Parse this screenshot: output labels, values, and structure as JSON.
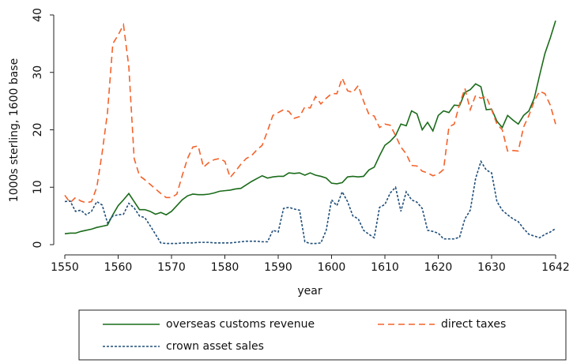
{
  "chart_data": {
    "type": "line",
    "x_label": "year",
    "y_label": "1000s sterling, 1600 base",
    "x": [
      1550,
      1551,
      1552,
      1553,
      1554,
      1555,
      1556,
      1557,
      1558,
      1559,
      1560,
      1561,
      1562,
      1563,
      1564,
      1565,
      1566,
      1567,
      1568,
      1569,
      1570,
      1571,
      1572,
      1573,
      1574,
      1575,
      1576,
      1577,
      1578,
      1579,
      1580,
      1581,
      1582,
      1583,
      1584,
      1585,
      1586,
      1587,
      1588,
      1589,
      1590,
      1591,
      1592,
      1593,
      1594,
      1595,
      1596,
      1597,
      1598,
      1599,
      1600,
      1601,
      1602,
      1603,
      1604,
      1605,
      1606,
      1607,
      1608,
      1609,
      1610,
      1611,
      1612,
      1613,
      1614,
      1615,
      1616,
      1617,
      1618,
      1619,
      1620,
      1621,
      1622,
      1623,
      1624,
      1625,
      1626,
      1627,
      1628,
      1629,
      1630,
      1631,
      1632,
      1633,
      1634,
      1635,
      1636,
      1637,
      1638,
      1639,
      1640,
      1641,
      1642
    ],
    "series": [
      {
        "name": "overseas customs revenue",
        "color": "#1a6b1a",
        "dash": "solid",
        "values": [
          1.9,
          2.0,
          2.0,
          2.3,
          2.5,
          2.7,
          3.0,
          3.2,
          3.4,
          5.2,
          6.8,
          7.8,
          8.9,
          7.5,
          6.1,
          6.1,
          5.8,
          5.3,
          5.6,
          5.2,
          5.8,
          6.8,
          7.8,
          8.5,
          8.8,
          8.7,
          8.7,
          8.8,
          9.0,
          9.3,
          9.4,
          9.5,
          9.7,
          9.8,
          10.4,
          11.0,
          11.5,
          12.0,
          11.6,
          11.8,
          11.9,
          11.9,
          12.5,
          12.4,
          12.5,
          12.1,
          12.5,
          12.1,
          11.9,
          11.6,
          10.7,
          10.6,
          10.8,
          11.8,
          11.9,
          11.8,
          11.9,
          13.0,
          13.5,
          15.5,
          17.3,
          18.0,
          19.0,
          21.0,
          20.7,
          23.3,
          22.8,
          20.0,
          21.3,
          19.8,
          22.5,
          23.3,
          23.0,
          24.3,
          24.2,
          26.5,
          27.0,
          28.0,
          27.5,
          23.5,
          23.6,
          21.5,
          20.4,
          22.5,
          21.7,
          21.0,
          22.5,
          23.3,
          25.5,
          29.5,
          33.3,
          36.0,
          39.0
        ]
      },
      {
        "name": "direct taxes",
        "color": "#f4622a",
        "dash": "dashed",
        "values": [
          8.6,
          7.3,
          8.2,
          7.6,
          7.3,
          7.5,
          10,
          16,
          23,
          35,
          36.5,
          38.3,
          31,
          15,
          12,
          11.3,
          10.5,
          9.7,
          8.9,
          8.2,
          8.2,
          8.8,
          12,
          15,
          17,
          17.2,
          13.5,
          14.3,
          14.8,
          15,
          14.5,
          11.7,
          12.8,
          14,
          15,
          15.5,
          16.5,
          17.3,
          19.8,
          22.5,
          23,
          23.5,
          23.2,
          22,
          22.3,
          24,
          23.8,
          25.8,
          24.5,
          25.5,
          26.3,
          26.3,
          29,
          26.8,
          26.5,
          27.7,
          25,
          22.7,
          22.4,
          20.4,
          21,
          20.8,
          19,
          17,
          15.8,
          13.8,
          13.7,
          12.8,
          12.5,
          12,
          12.3,
          13.1,
          20.5,
          21,
          24.5,
          27.2,
          23.5,
          26,
          25.5,
          25.8,
          23.5,
          21,
          20,
          16.3,
          16.4,
          16.3,
          20.5,
          22.5,
          25,
          26.7,
          26.3,
          24.3,
          21
        ]
      },
      {
        "name": "crown asset sales",
        "color": "#1f4e79",
        "dash": "dotted",
        "values": [
          7.5,
          7.6,
          5.8,
          6.0,
          5.2,
          5.8,
          7.5,
          6.9,
          3.8,
          5.0,
          5.2,
          5.3,
          7.2,
          6.4,
          5.0,
          4.7,
          3.3,
          1.8,
          0.3,
          0.2,
          0.2,
          0.2,
          0.3,
          0.3,
          0.3,
          0.4,
          0.4,
          0.4,
          0.3,
          0.3,
          0.3,
          0.3,
          0.4,
          0.5,
          0.6,
          0.6,
          0.6,
          0.5,
          0.5,
          2.5,
          2.2,
          6.3,
          6.5,
          6.2,
          6.0,
          0.5,
          0.2,
          0.2,
          0.3,
          2.5,
          7.8,
          6.8,
          9.2,
          7.5,
          5.0,
          4.5,
          2.5,
          1.8,
          1.2,
          6.5,
          7.0,
          9.0,
          10.0,
          5.8,
          9.2,
          7.8,
          7.4,
          6.3,
          2.5,
          2.3,
          2.0,
          1.0,
          1.0,
          1.0,
          1.3,
          4.5,
          6.0,
          11.5,
          14.5,
          13.0,
          12.5,
          7.5,
          6.0,
          5.2,
          4.5,
          4.0,
          2.8,
          1.8,
          1.5,
          1.2,
          1.8,
          2.2,
          2.8
        ]
      }
    ],
    "xlim": [
      1548,
      1644
    ],
    "ylim": [
      -1,
      41
    ],
    "xticks": [
      1550,
      1560,
      1570,
      1580,
      1590,
      1600,
      1610,
      1620,
      1630,
      1642
    ],
    "yticks": [
      0,
      10,
      20,
      30,
      40
    ]
  }
}
